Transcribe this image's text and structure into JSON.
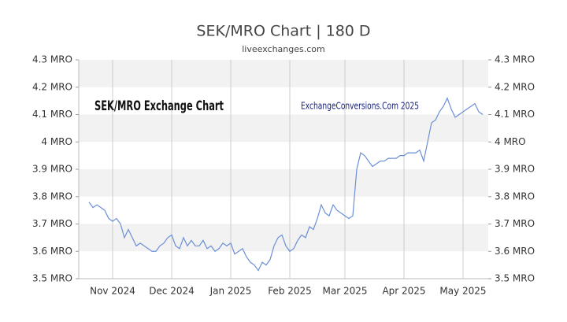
{
  "chart_data": {
    "type": "line",
    "title": "SEK/MRO Chart | 180 D",
    "subtitle": "liveexchanges.com",
    "annotations": [
      "SEK/MRO Exchange Chart",
      "ExchangeConversions.Com 2025"
    ],
    "categories": [
      null,
      null,
      null,
      null,
      null,
      null,
      "Nov 2024",
      null,
      null,
      null,
      null,
      null,
      null,
      null,
      null,
      null,
      null,
      null,
      null,
      null,
      null,
      "Dec 2024",
      null,
      null,
      null,
      null,
      null,
      null,
      null,
      null,
      null,
      null,
      null,
      null,
      null,
      null,
      "Jan 2025",
      null,
      null,
      null,
      null,
      null,
      null,
      null,
      null,
      null,
      null,
      null,
      null,
      null,
      null,
      "Feb 2025",
      null,
      null,
      null,
      null,
      null,
      null,
      null,
      null,
      null,
      null,
      null,
      null,
      null,
      "Mar 2025",
      null,
      null,
      null,
      null,
      null,
      null,
      null,
      null,
      null,
      null,
      null,
      null,
      null,
      null,
      "Apr 2025",
      null,
      null,
      null,
      null,
      null,
      null,
      null,
      null,
      null,
      null,
      null,
      null,
      null,
      null,
      "May 2025",
      null,
      null,
      null,
      null,
      null
    ],
    "series": [
      {
        "name": "SEK/MRO",
        "color": "#6b8fd6",
        "values": [
          3.78,
          3.76,
          3.77,
          3.76,
          3.75,
          3.72,
          3.71,
          3.72,
          3.7,
          3.65,
          3.68,
          3.65,
          3.62,
          3.63,
          3.62,
          3.61,
          3.6,
          3.6,
          3.62,
          3.63,
          3.65,
          3.66,
          3.62,
          3.61,
          3.65,
          3.62,
          3.64,
          3.62,
          3.62,
          3.64,
          3.61,
          3.62,
          3.6,
          3.61,
          3.63,
          3.62,
          3.63,
          3.59,
          3.6,
          3.61,
          3.58,
          3.56,
          3.55,
          3.53,
          3.56,
          3.55,
          3.57,
          3.62,
          3.65,
          3.66,
          3.62,
          3.6,
          3.61,
          3.64,
          3.66,
          3.65,
          3.69,
          3.68,
          3.72,
          3.77,
          3.74,
          3.73,
          3.77,
          3.75,
          3.74,
          3.73,
          3.72,
          3.73,
          3.9,
          3.96,
          3.95,
          3.93,
          3.91,
          3.92,
          3.93,
          3.93,
          3.94,
          3.94,
          3.94,
          3.95,
          3.95,
          3.96,
          3.96,
          3.96,
          3.97,
          3.93,
          4.0,
          4.07,
          4.08,
          4.11,
          4.13,
          4.16,
          4.12,
          4.09,
          4.1,
          4.11,
          4.12,
          4.13,
          4.14,
          4.11,
          4.1
        ]
      }
    ],
    "ylim": [
      3.5,
      4.3
    ],
    "yticks": [
      {
        "value": 3.5,
        "label": "3.5 MRO"
      },
      {
        "value": 3.6,
        "label": "3.6 MRO"
      },
      {
        "value": 3.7,
        "label": "3.7 MRO"
      },
      {
        "value": 3.8,
        "label": "3.8 MRO"
      },
      {
        "value": 3.9,
        "label": "3.9 MRO"
      },
      {
        "value": 4,
        "label": "4 MRO"
      },
      {
        "value": 4.1,
        "label": "4.1 MRO"
      },
      {
        "value": 4.2,
        "label": "4.2 MRO"
      },
      {
        "value": 4.3,
        "label": "4.3 MRO"
      }
    ],
    "grid": true
  }
}
